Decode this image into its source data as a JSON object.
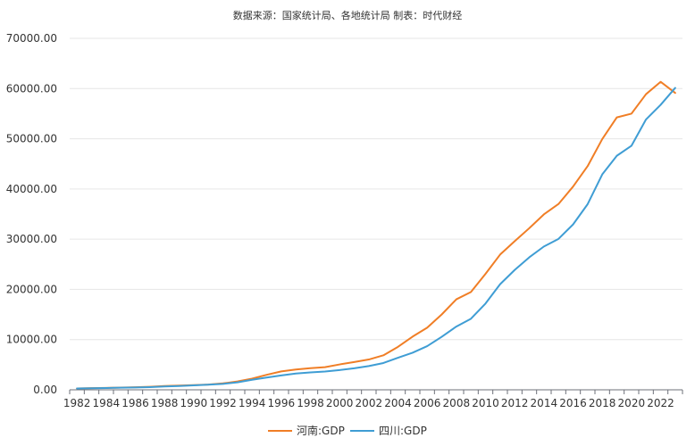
{
  "chart_data": {
    "type": "line",
    "title": "数据来源：国家统计局、各地统计局  制表：时代财经",
    "categories": [
      "1982",
      "1983",
      "1984",
      "1985",
      "1986",
      "1987",
      "1988",
      "1989",
      "1990",
      "1991",
      "1992",
      "1993",
      "1994",
      "1995",
      "1996",
      "1997",
      "1998",
      "1999",
      "2000",
      "2001",
      "2002",
      "2003",
      "2004",
      "2005",
      "2006",
      "2007",
      "2008",
      "2009",
      "2010",
      "2011",
      "2012",
      "2013",
      "2014",
      "2015",
      "2016",
      "2017",
      "2018",
      "2019",
      "2020",
      "2021",
      "2022",
      "2023"
    ],
    "x_tick_labels": [
      "1982",
      "1984",
      "1986",
      "1988",
      "1990",
      "1992",
      "1994",
      "1996",
      "1998",
      "2000",
      "2002",
      "2004",
      "2006",
      "2008",
      "2010",
      "2012",
      "2014",
      "2016",
      "2018",
      "2020",
      "2022"
    ],
    "y_tick_labels": [
      "0.00",
      "10000.00",
      "20000.00",
      "30000.00",
      "40000.00",
      "50000.00",
      "60000.00",
      "70000.00"
    ],
    "ylim": [
      0,
      70000
    ],
    "grid": true,
    "legend_position": "bottom-center",
    "series": [
      {
        "name": "河南:GDP",
        "color": "#f07e26",
        "values": [
          263,
          328,
          370,
          451,
          502,
          610,
          749,
          851,
          934,
          1045,
          1279,
          1660,
          2224,
          2988,
          3661,
          4041,
          4308,
          4517,
          5053,
          5533,
          6035,
          6868,
          8554,
          10587,
          12363,
          15012,
          18018,
          19480,
          23092,
          26931,
          29599,
          32191,
          34938,
          37002,
          40472,
          44553,
          49936,
          54259,
          54997,
          58887,
          61345,
          59132
        ]
      },
      {
        "name": "四川:GDP",
        "color": "#3f9dd4",
        "values": [
          275,
          311,
          358,
          421,
          458,
          530,
          659,
          745,
          891,
          1016,
          1177,
          1486,
          2001,
          2443,
          2872,
          3241,
          3474,
          3649,
          3928,
          4293,
          4725,
          5333,
          6380,
          7385,
          8690,
          10562,
          12601,
          14151,
          17185,
          21027,
          23873,
          26392,
          28537,
          30053,
          32935,
          36980,
          42902,
          46616,
          48599,
          53851,
          56750,
          60133
        ]
      }
    ]
  }
}
